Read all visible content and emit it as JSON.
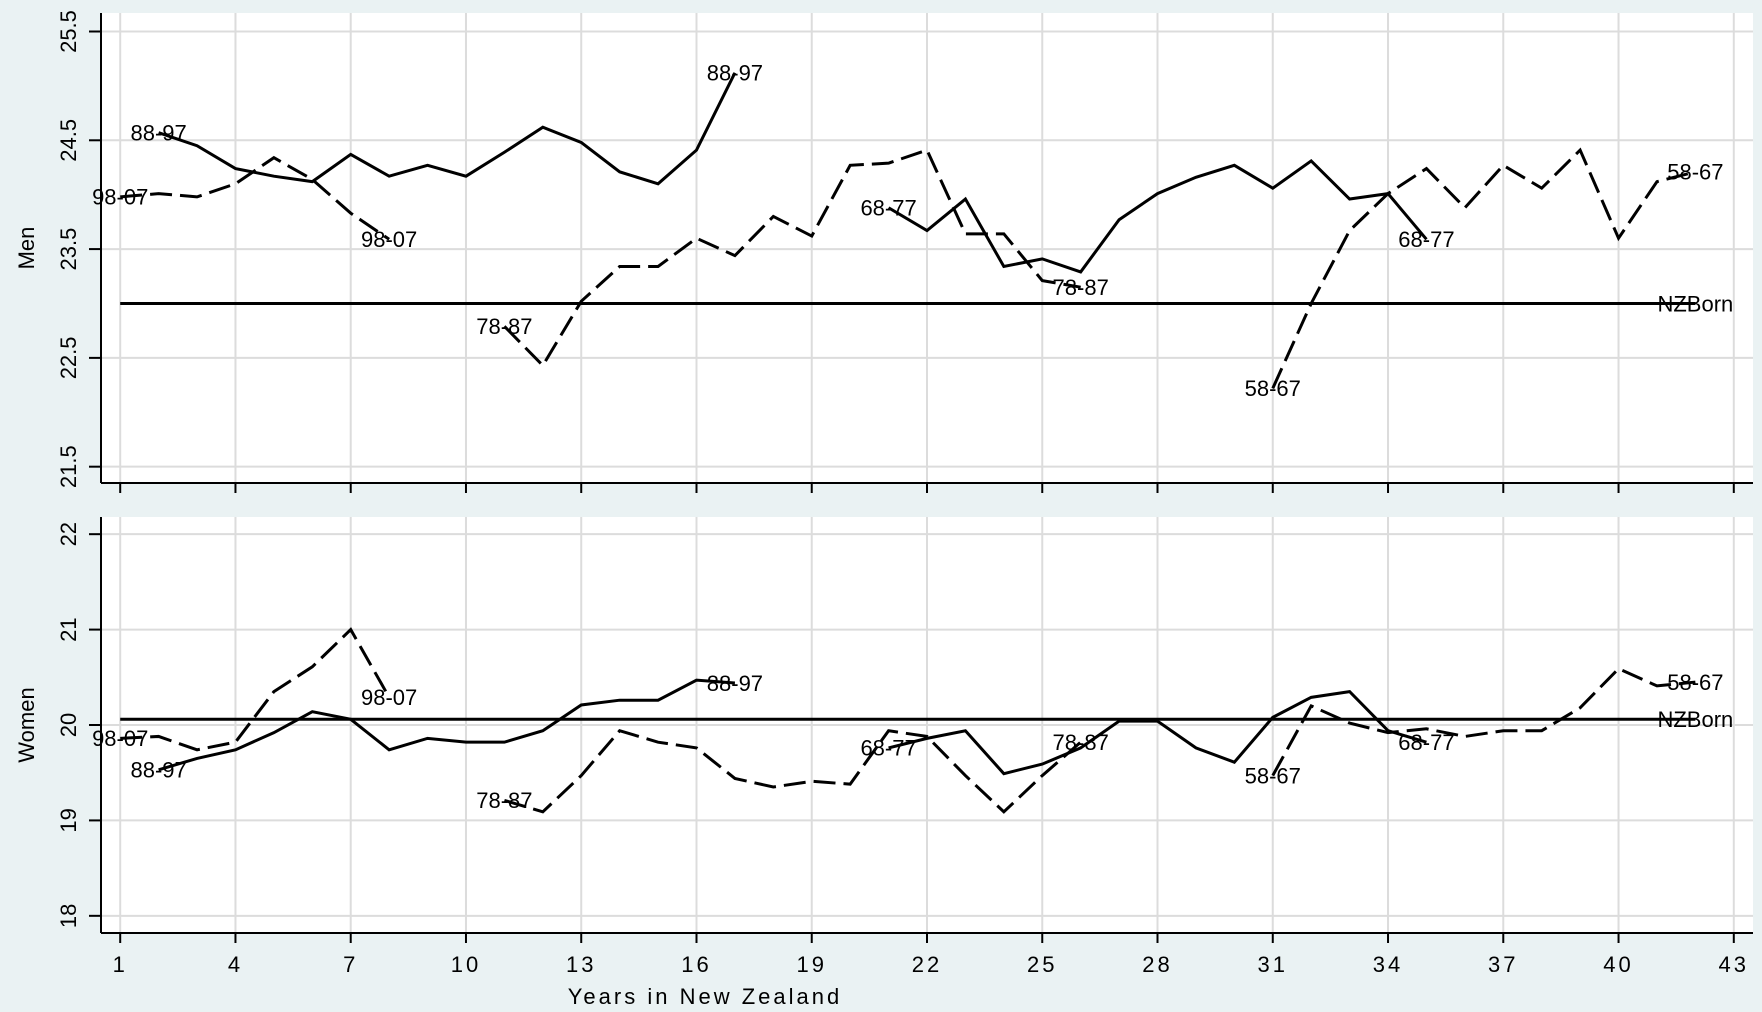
{
  "chart_data": [
    {
      "type": "line",
      "ylabel": "Men",
      "grid": true,
      "x": [
        1,
        2,
        3,
        4,
        5,
        6,
        7,
        8,
        9,
        10,
        11,
        12,
        13,
        14,
        15,
        16,
        17,
        18,
        19,
        20,
        21,
        22,
        23,
        24,
        25,
        26,
        27,
        28,
        29,
        30,
        31,
        32,
        33,
        34,
        35,
        36,
        37,
        38,
        39,
        40,
        41,
        42
      ],
      "xlim": [
        0.5,
        43.5
      ],
      "ylim": [
        21.35,
        25.67
      ],
      "yticks": [
        21.5,
        22.5,
        23.5,
        24.5,
        25.5
      ],
      "series": [
        {
          "name": "98-07",
          "color": "#000000",
          "dash": true,
          "labels": "both",
          "values": [
            23.98,
            24.01,
            23.98,
            24.1,
            24.34,
            24.14,
            23.83,
            23.59,
            null,
            null,
            null,
            null,
            null,
            null,
            null,
            null,
            null,
            null,
            null,
            null,
            null,
            null,
            null,
            null,
            null,
            null,
            null,
            null,
            null,
            null,
            null,
            null,
            null,
            null,
            null,
            null,
            null,
            null,
            null,
            null,
            null,
            null
          ]
        },
        {
          "name": "88-97",
          "color": "#000000",
          "dash": false,
          "labels": "both",
          "values": [
            null,
            24.57,
            24.45,
            24.24,
            24.17,
            24.12,
            24.37,
            24.17,
            24.27,
            24.17,
            24.39,
            24.62,
            24.48,
            24.21,
            24.1,
            24.41,
            25.12,
            null,
            null,
            null,
            null,
            null,
            null,
            null,
            null,
            null,
            null,
            null,
            null,
            null,
            null,
            null,
            null,
            null,
            null,
            null,
            null,
            null,
            null,
            null,
            null,
            null
          ]
        },
        {
          "name": "78-87",
          "color": "#000000",
          "dash": true,
          "labels": "both",
          "values": [
            null,
            null,
            null,
            null,
            null,
            null,
            null,
            null,
            null,
            null,
            22.79,
            22.43,
            23.02,
            23.34,
            23.34,
            23.6,
            23.44,
            23.8,
            23.62,
            24.27,
            24.29,
            24.41,
            23.64,
            23.64,
            23.21,
            23.15,
            null,
            null,
            null,
            null,
            null,
            null,
            null,
            null,
            null,
            null,
            null,
            null,
            null,
            null,
            null,
            null
          ]
        },
        {
          "name": "68-77",
          "color": "#000000",
          "dash": false,
          "labels": "both",
          "values": [
            null,
            null,
            null,
            null,
            null,
            null,
            null,
            null,
            null,
            null,
            null,
            null,
            null,
            null,
            null,
            null,
            null,
            null,
            null,
            null,
            23.88,
            23.67,
            23.96,
            23.34,
            23.41,
            23.29,
            23.77,
            24.01,
            24.16,
            24.27,
            24.06,
            24.31,
            23.96,
            24.01,
            23.59,
            null,
            null,
            null,
            null,
            null,
            null,
            null
          ]
        },
        {
          "name": "58-67",
          "color": "#000000",
          "dash": true,
          "labels": "both",
          "values": [
            null,
            null,
            null,
            null,
            null,
            null,
            null,
            null,
            null,
            null,
            null,
            null,
            null,
            null,
            null,
            null,
            null,
            null,
            null,
            null,
            null,
            null,
            null,
            null,
            null,
            null,
            null,
            null,
            null,
            null,
            22.22,
            23.0,
            23.67,
            24.01,
            24.24,
            23.88,
            24.27,
            24.06,
            24.41,
            23.6,
            24.12,
            24.21
          ]
        },
        {
          "name": "NZBorn",
          "color": "#000000",
          "dash": false,
          "labels": "end",
          "values": [
            23.0,
            23.0,
            23.0,
            23.0,
            23.0,
            23.0,
            23.0,
            23.0,
            23.0,
            23.0,
            23.0,
            23.0,
            23.0,
            23.0,
            23.0,
            23.0,
            23.0,
            23.0,
            23.0,
            23.0,
            23.0,
            23.0,
            23.0,
            23.0,
            23.0,
            23.0,
            23.0,
            23.0,
            23.0,
            23.0,
            23.0,
            23.0,
            23.0,
            23.0,
            23.0,
            23.0,
            23.0,
            23.0,
            23.0,
            23.0,
            23.0,
            23.0
          ]
        }
      ]
    },
    {
      "type": "line",
      "ylabel": "Women",
      "xlabel": "Years in New Zealand",
      "grid": true,
      "x": [
        1,
        2,
        3,
        4,
        5,
        6,
        7,
        8,
        9,
        10,
        11,
        12,
        13,
        14,
        15,
        16,
        17,
        18,
        19,
        20,
        21,
        22,
        23,
        24,
        25,
        26,
        27,
        28,
        29,
        30,
        31,
        32,
        33,
        34,
        35,
        36,
        37,
        38,
        39,
        40,
        41,
        42
      ],
      "xlim": [
        0.5,
        43.5
      ],
      "xticks": [
        1,
        4,
        7,
        10,
        13,
        16,
        19,
        22,
        25,
        28,
        31,
        34,
        37,
        40,
        43
      ],
      "ylim": [
        17.82,
        22.18
      ],
      "yticks": [
        18,
        19,
        20,
        21,
        22
      ],
      "series": [
        {
          "name": "98-07",
          "color": "#000000",
          "dash": true,
          "labels": "both",
          "values": [
            19.86,
            19.88,
            19.74,
            19.82,
            20.35,
            20.61,
            21.0,
            20.29,
            null,
            null,
            null,
            null,
            null,
            null,
            null,
            null,
            null,
            null,
            null,
            null,
            null,
            null,
            null,
            null,
            null,
            null,
            null,
            null,
            null,
            null,
            null,
            null,
            null,
            null,
            null,
            null,
            null,
            null,
            null,
            null,
            null,
            null
          ]
        },
        {
          "name": "88-97",
          "color": "#000000",
          "dash": false,
          "labels": "both",
          "values": [
            null,
            19.53,
            19.65,
            19.74,
            19.92,
            20.14,
            20.06,
            19.74,
            19.86,
            19.82,
            19.82,
            19.94,
            20.21,
            20.26,
            20.26,
            20.47,
            20.44,
            null,
            null,
            null,
            null,
            null,
            null,
            null,
            null,
            null,
            null,
            null,
            null,
            null,
            null,
            null,
            null,
            null,
            null,
            null,
            null,
            null,
            null,
            null,
            null,
            null
          ]
        },
        {
          "name": "78-87",
          "color": "#000000",
          "dash": true,
          "labels": "both",
          "values": [
            null,
            null,
            null,
            null,
            null,
            null,
            null,
            null,
            null,
            null,
            19.21,
            19.09,
            19.47,
            19.94,
            19.82,
            19.76,
            19.44,
            19.35,
            19.41,
            19.38,
            19.94,
            19.88,
            19.47,
            19.09,
            19.47,
            19.82,
            null,
            null,
            null,
            null,
            null,
            null,
            null,
            null,
            null,
            null,
            null,
            null,
            null,
            null,
            null,
            null
          ]
        },
        {
          "name": "68-77",
          "color": "#000000",
          "dash": false,
          "labels": "both",
          "values": [
            null,
            null,
            null,
            null,
            null,
            null,
            null,
            null,
            null,
            null,
            null,
            null,
            null,
            null,
            null,
            null,
            null,
            null,
            null,
            null,
            19.76,
            19.86,
            19.94,
            19.49,
            19.59,
            19.76,
            20.04,
            20.04,
            19.76,
            19.61,
            20.08,
            20.29,
            20.35,
            19.94,
            19.82,
            null,
            null,
            null,
            null,
            null,
            null,
            null
          ]
        },
        {
          "name": "58-67",
          "color": "#000000",
          "dash": true,
          "labels": "both",
          "values": [
            null,
            null,
            null,
            null,
            null,
            null,
            null,
            null,
            null,
            null,
            null,
            null,
            null,
            null,
            null,
            null,
            null,
            null,
            null,
            null,
            null,
            null,
            null,
            null,
            null,
            null,
            null,
            null,
            null,
            null,
            19.47,
            20.2,
            20.02,
            19.92,
            19.96,
            19.88,
            19.94,
            19.94,
            20.18,
            20.59,
            20.41,
            20.45
          ]
        },
        {
          "name": "NZBorn",
          "color": "#000000",
          "dash": false,
          "labels": "end",
          "values": [
            20.06,
            20.06,
            20.06,
            20.06,
            20.06,
            20.06,
            20.06,
            20.06,
            20.06,
            20.06,
            20.06,
            20.06,
            20.06,
            20.06,
            20.06,
            20.06,
            20.06,
            20.06,
            20.06,
            20.06,
            20.06,
            20.06,
            20.06,
            20.06,
            20.06,
            20.06,
            20.06,
            20.06,
            20.06,
            20.06,
            20.06,
            20.06,
            20.06,
            20.06,
            20.06,
            20.06,
            20.06,
            20.06,
            20.06,
            20.06,
            20.06,
            20.06
          ]
        }
      ]
    }
  ]
}
